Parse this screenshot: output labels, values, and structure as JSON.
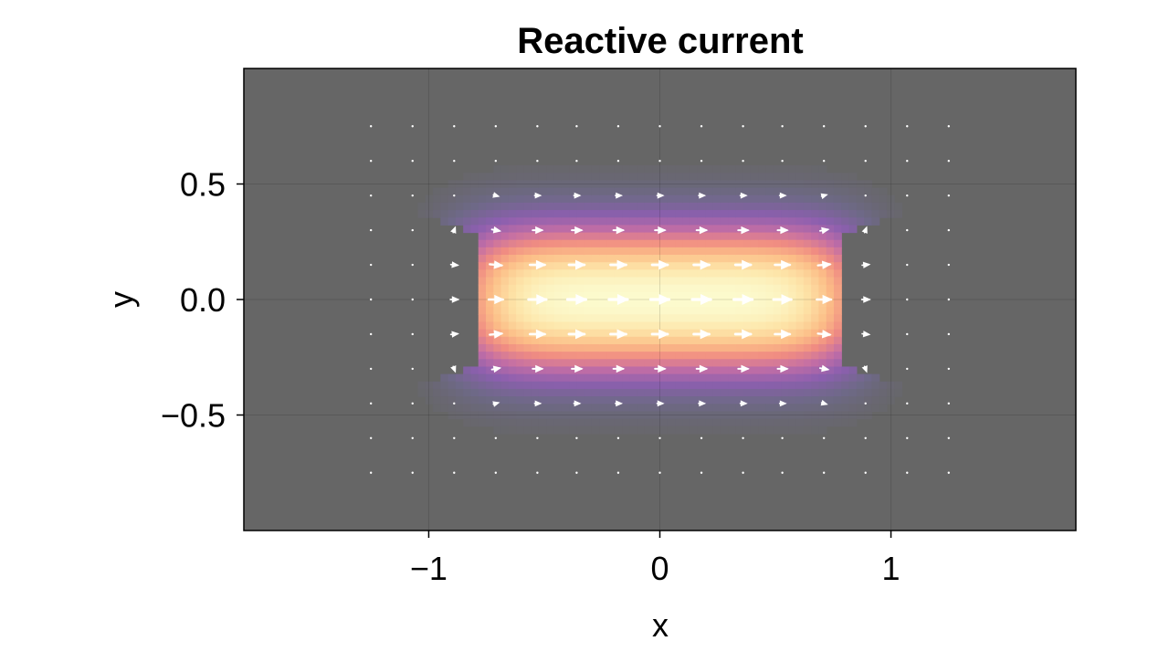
{
  "chart_data": {
    "type": "heatmap",
    "title": "Reactive current",
    "xlabel": "x",
    "ylabel": "y",
    "xlim": [
      -1.8,
      1.8
    ],
    "ylim": [
      -1.0,
      1.0
    ],
    "xticks": [
      {
        "value": -1,
        "label": "−1"
      },
      {
        "value": 0,
        "label": "0"
      },
      {
        "value": 1,
        "label": "1"
      }
    ],
    "yticks": [
      {
        "value": 0.5,
        "label": "0.5"
      },
      {
        "value": 0.0,
        "label": "0.0"
      },
      {
        "value": -0.5,
        "label": "−0.5"
      }
    ],
    "grid": true,
    "legend": "none",
    "colormap": "magma",
    "background_color": "#666666",
    "arrow_color": "#ffffff",
    "field": {
      "description_of_shape": "magnitude peaks at origin, confined to |x|<~0.8 and |y|<~0.5, with hyperbolic notches near x=±1",
      "peak": [
        0.0,
        0.0
      ]
    },
    "arrow_grid": {
      "x": [
        -1.25,
        -1.07,
        -0.89,
        -0.71,
        -0.53,
        -0.36,
        -0.18,
        0.0,
        0.18,
        0.36,
        0.53,
        0.71,
        0.89,
        1.07,
        1.25
      ],
      "y": [
        0.75,
        0.6,
        0.45,
        0.3,
        0.15,
        0.0,
        -0.15,
        -0.3,
        -0.45,
        -0.6,
        -0.75
      ]
    }
  }
}
